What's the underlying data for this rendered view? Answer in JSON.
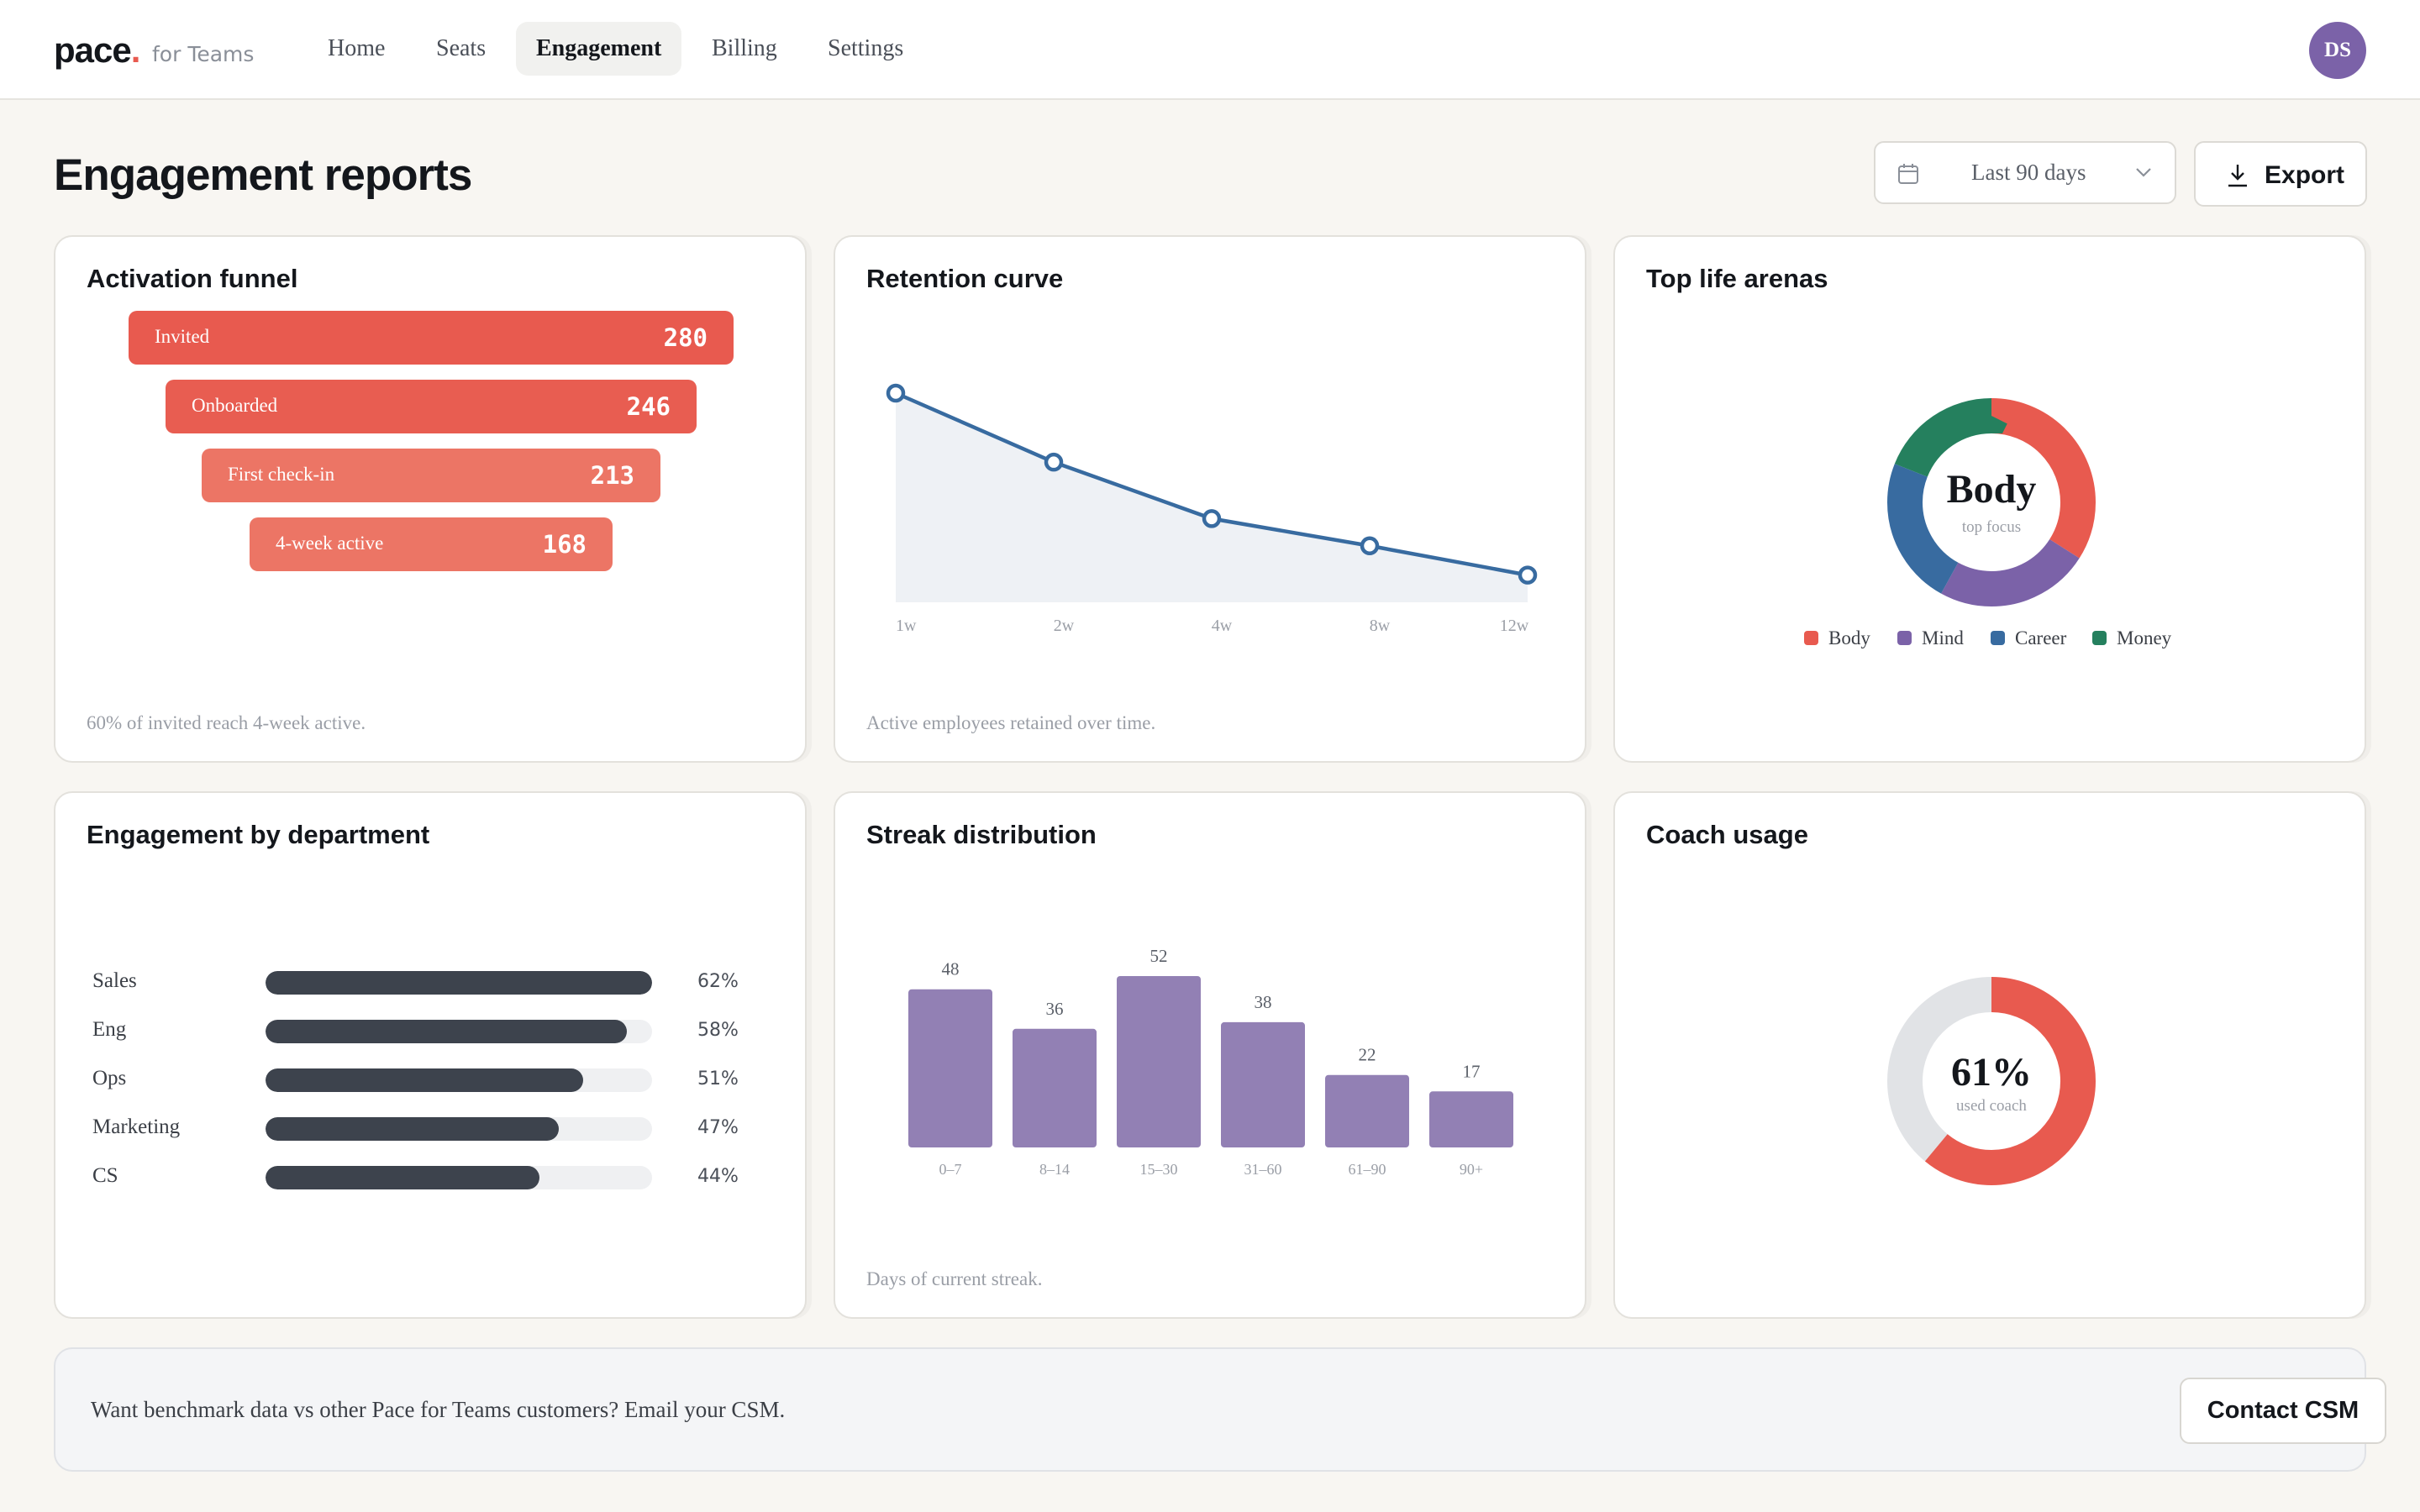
{
  "app": {
    "logo": "pace",
    "logo_dot": ".",
    "logo_sub": "for Teams",
    "avatar_initials": "DS"
  },
  "nav": {
    "items": [
      {
        "label": "Home"
      },
      {
        "label": "Seats"
      },
      {
        "label": "Engagement",
        "active": true
      },
      {
        "label": "Billing"
      },
      {
        "label": "Settings"
      }
    ]
  },
  "header": {
    "title": "Engagement reports",
    "range_label": "Last 90 days",
    "export_label": "Export"
  },
  "cards": {
    "funnel": {
      "title": "Activation funnel",
      "footnote": "60% of invited reach 4-week active.",
      "steps": [
        {
          "label": "Invited",
          "value": 280
        },
        {
          "label": "Onboarded",
          "value": 246
        },
        {
          "label": "First check-in",
          "value": 213
        },
        {
          "label": "4-week active",
          "value": 168
        }
      ]
    },
    "retention": {
      "title": "Retention curve",
      "footnote": "Active employees retained over time."
    },
    "arenas": {
      "title": "Top life arenas",
      "center_label": "Body",
      "center_sub": "top focus",
      "legend": [
        {
          "label": "Body",
          "color": "#e85a4f"
        },
        {
          "label": "Mind",
          "color": "#7b62a8"
        },
        {
          "label": "Career",
          "color": "#386ba0"
        },
        {
          "label": "Money",
          "color": "#25805e"
        }
      ]
    },
    "departments": {
      "title": "Engagement by department",
      "rows": [
        {
          "label": "Sales",
          "value": 62,
          "pct": "62%"
        },
        {
          "label": "Eng",
          "value": 58,
          "pct": "58%"
        },
        {
          "label": "Ops",
          "value": 51,
          "pct": "51%"
        },
        {
          "label": "Marketing",
          "value": 47,
          "pct": "47%"
        },
        {
          "label": "CS",
          "value": 44,
          "pct": "44%"
        }
      ]
    },
    "streak": {
      "title": "Streak distribution",
      "footnote": "Days of current streak."
    },
    "coach": {
      "title": "Coach usage",
      "value_label": "61%",
      "sub_label": "used coach",
      "value": 61
    }
  },
  "banner": {
    "text": "Want benchmark data vs other Pace for Teams customers? Email your CSM.",
    "button_label": "Contact CSM"
  },
  "chart_data": [
    {
      "id": "retention",
      "type": "line",
      "x": [
        "1w",
        "2w",
        "4w",
        "8w",
        "12w"
      ],
      "values": [
        100,
        67,
        40,
        27,
        13
      ],
      "ylim": [
        0,
        100
      ],
      "color": "#386ba0",
      "grid": false
    },
    {
      "id": "arenas",
      "type": "pie",
      "labels": [
        "Body",
        "Mind",
        "Career",
        "Money"
      ],
      "values": [
        34,
        24,
        23,
        19
      ],
      "colors": [
        "#e85a4f",
        "#7b62a8",
        "#386ba0",
        "#25805e"
      ]
    },
    {
      "id": "streak",
      "type": "bar",
      "categories": [
        "0–7",
        "8–14",
        "15–30",
        "31–60",
        "61–90",
        "90+"
      ],
      "values": [
        48,
        36,
        52,
        38,
        22,
        17
      ],
      "color": "#9280b4"
    },
    {
      "id": "coach",
      "type": "pie",
      "labels": [
        "used coach",
        "other"
      ],
      "values": [
        61,
        39
      ],
      "colors": [
        "#e85a4f",
        "#e1e3e6"
      ]
    }
  ]
}
